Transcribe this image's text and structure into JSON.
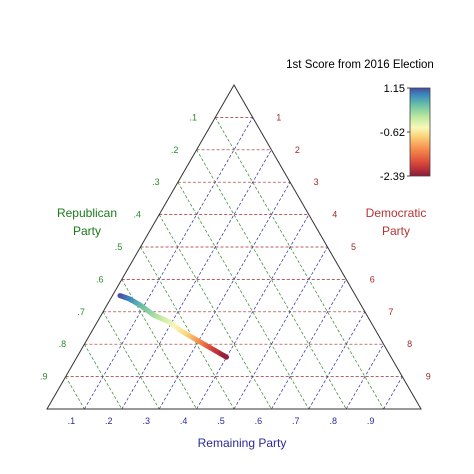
{
  "chart_data": {
    "type": "ternary",
    "colorbar": {
      "title": "1st Score from 2016 Election",
      "max_label": "1.15",
      "mid_label": "-0.62",
      "min_label": "-2.39",
      "range": [
        -2.39,
        1.15
      ],
      "colors": [
        "#8b1a3a",
        "#d8443a",
        "#f58a4a",
        "#fcd27a",
        "#f8f8b8",
        "#b8e6a0",
        "#6fc4a4",
        "#3a8bbf",
        "#4a4aa0"
      ]
    },
    "axes": {
      "republican": {
        "label_line1": "Republican",
        "label_line2": "Party",
        "ticks": [
          ".1",
          ".2",
          ".3",
          ".4",
          ".5",
          ".6",
          ".7",
          ".8",
          ".9"
        ],
        "color": "#2a8a2a"
      },
      "democratic": {
        "label_line1": "Democratic",
        "label_line2": "Party",
        "ticks": [
          ".1",
          ".2",
          ".3",
          ".4",
          ".5",
          ".6",
          ".7",
          ".8",
          ".9"
        ],
        "color": "#a02a2a"
      },
      "remaining": {
        "label": "Remaining Party",
        "ticks": [
          ".1",
          ".2",
          ".3",
          ".4",
          ".5",
          ".6",
          ".7",
          ".8",
          ".9"
        ],
        "color": "#2a2aa0"
      }
    },
    "curve": {
      "points": [
        {
          "rep": 0.63,
          "dem": 0.02,
          "score": -2.39
        },
        {
          "rep": 0.61,
          "dem": 0.05,
          "score": -2.0
        },
        {
          "rep": 0.59,
          "dem": 0.09,
          "score": -1.6
        },
        {
          "rep": 0.57,
          "dem": 0.14,
          "score": -1.2
        },
        {
          "rep": 0.54,
          "dem": 0.19,
          "score": -0.8
        },
        {
          "rep": 0.52,
          "dem": 0.24,
          "score": -0.4
        },
        {
          "rep": 0.5,
          "dem": 0.28,
          "score": 0.0
        },
        {
          "rep": 0.48,
          "dem": 0.32,
          "score": 0.4
        },
        {
          "rep": 0.46,
          "dem": 0.36,
          "score": 0.8
        },
        {
          "rep": 0.44,
          "dem": 0.4,
          "score": 1.15
        }
      ]
    }
  }
}
